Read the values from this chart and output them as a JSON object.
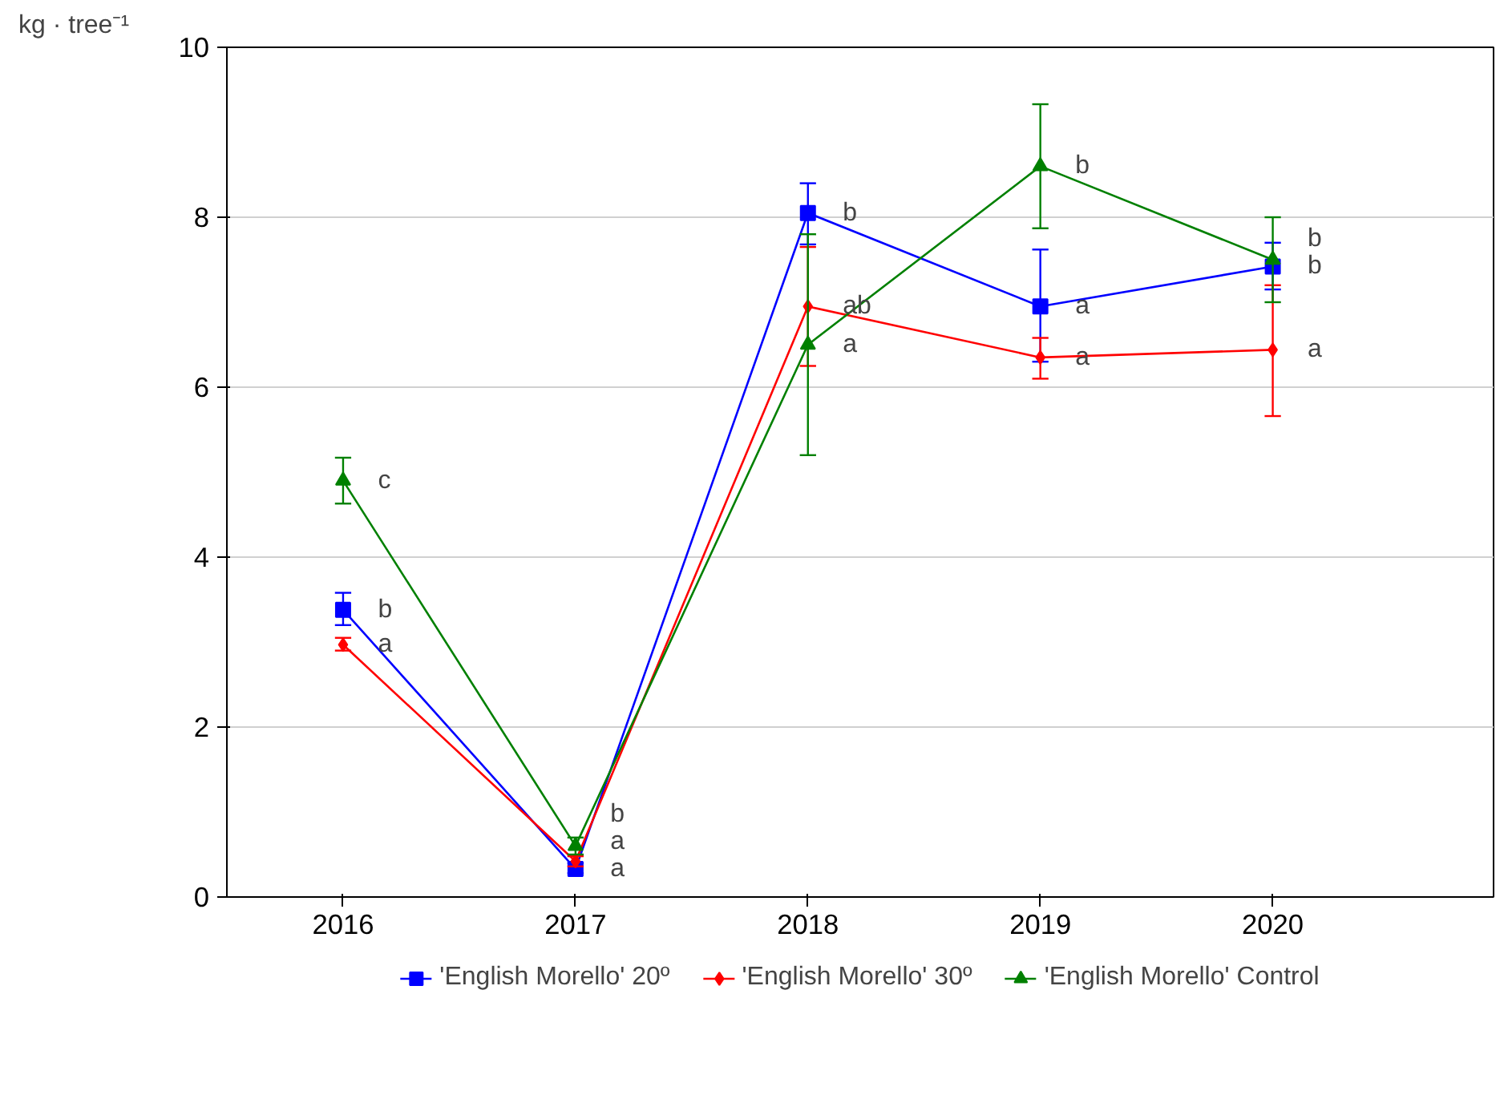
{
  "chart_data": {
    "type": "line",
    "ylabel": "kg · tree⁻¹",
    "categories": [
      "2016",
      "2017",
      "2018",
      "2019",
      "2020"
    ],
    "ylim": [
      0,
      10
    ],
    "yticks": [
      0,
      2,
      4,
      6,
      8,
      10
    ],
    "grid": "y",
    "legend": "bottom",
    "series": [
      {
        "name": "'English Morello' 20º",
        "color": "#0000ff",
        "marker": "square",
        "values": [
          3.38,
          0.33,
          8.05,
          6.95,
          7.42
        ],
        "errors": [
          [
            3.2,
            3.58
          ],
          [
            0.28,
            0.4
          ],
          [
            7.68,
            8.4
          ],
          [
            6.3,
            7.62
          ],
          [
            7.15,
            7.7
          ]
        ]
      },
      {
        "name": "'English Morello' 30º",
        "color": "#ff0000",
        "marker": "diamond",
        "values": [
          2.97,
          0.42,
          6.95,
          6.35,
          6.44
        ],
        "errors": [
          [
            2.9,
            3.05
          ],
          [
            0.36,
            0.48
          ],
          [
            6.25,
            7.65
          ],
          [
            6.1,
            6.58
          ],
          [
            5.66,
            7.2
          ]
        ]
      },
      {
        "name": "'English Morello' Control",
        "color": "#008000",
        "marker": "triangle",
        "values": [
          4.9,
          0.6,
          6.5,
          8.6,
          7.5
        ],
        "errors": [
          [
            4.63,
            5.17
          ],
          [
            0.5,
            0.7
          ],
          [
            5.2,
            7.8
          ],
          [
            7.87,
            9.33
          ],
          [
            7.0,
            8.0
          ]
        ]
      }
    ],
    "annotations": [
      {
        "text": "c",
        "x": "2016",
        "y": 4.9
      },
      {
        "text": "b",
        "x": "2016",
        "y": 3.38
      },
      {
        "text": "a",
        "x": "2016",
        "y": 2.97
      },
      {
        "text": "b",
        "x": "2017",
        "y": 0.6
      },
      {
        "text": "a",
        "x": "2017",
        "y": 0.42
      },
      {
        "text": "a",
        "x": "2017",
        "y": 0.33
      },
      {
        "text": "b",
        "x": "2018",
        "y": 8.05
      },
      {
        "text": "ab",
        "x": "2018",
        "y": 6.95
      },
      {
        "text": "a",
        "x": "2018",
        "y": 6.5
      },
      {
        "text": "b",
        "x": "2019",
        "y": 8.6
      },
      {
        "text": "a",
        "x": "2019",
        "y": 6.95
      },
      {
        "text": "a",
        "x": "2019",
        "y": 6.35
      },
      {
        "text": "b",
        "x": "2020",
        "y": 7.5
      },
      {
        "text": "b",
        "x": "2020",
        "y": 7.42
      },
      {
        "text": "a",
        "x": "2020",
        "y": 6.44
      }
    ]
  }
}
